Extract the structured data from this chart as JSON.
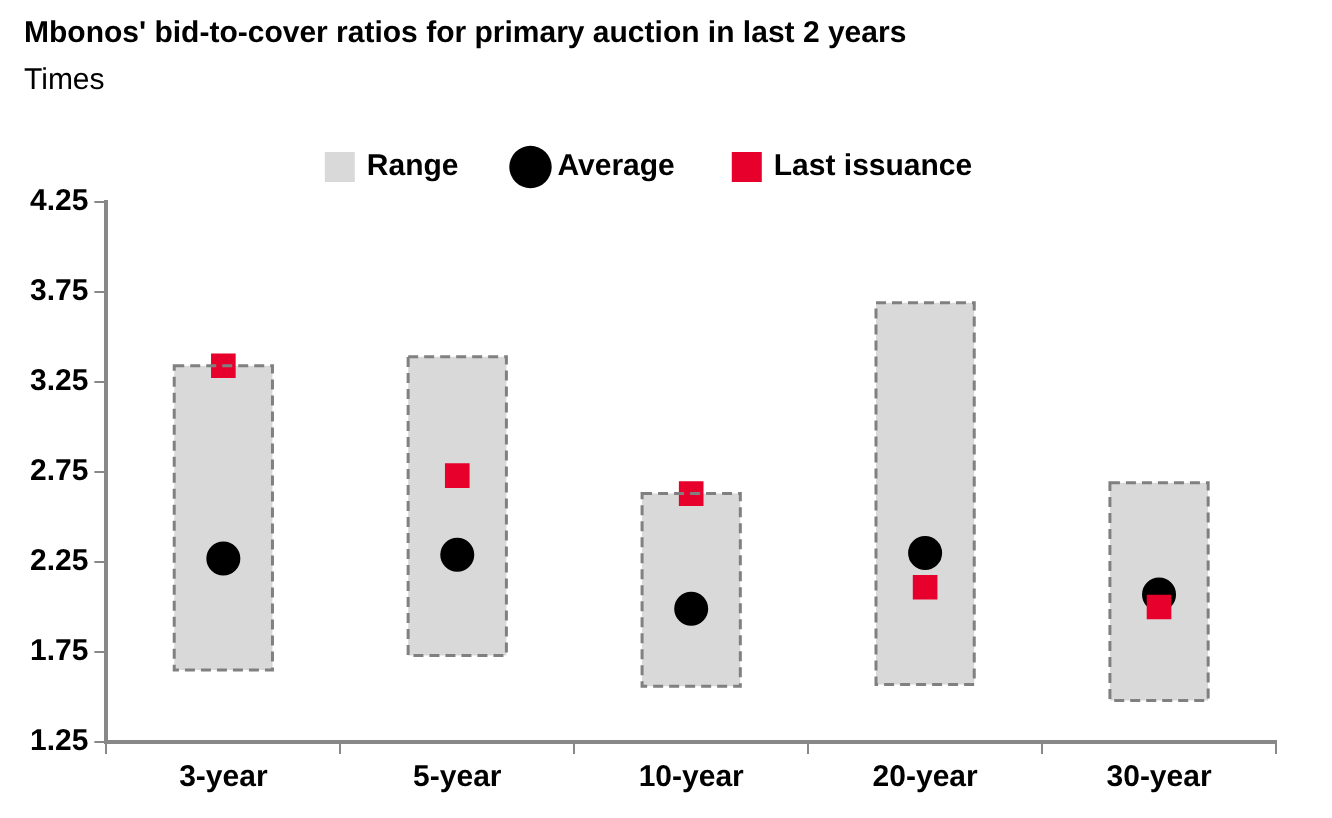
{
  "chart_data": {
    "type": "bar",
    "title": "Mbonos' bid-to-cover ratios for primary auction in last 2 years",
    "ylabel": "Times",
    "categories": [
      "3-year",
      "5-year",
      "10-year",
      "20-year",
      "30-year"
    ],
    "series": [
      {
        "name": "Range",
        "color": "#d9d9d9",
        "line_style": "dashed",
        "base": [
          1.65,
          1.73,
          1.56,
          1.57,
          1.48
        ],
        "values": [
          1.69,
          1.66,
          1.07,
          2.12,
          1.21
        ]
      },
      {
        "type": "scatter",
        "name": "Average",
        "color": "#000000",
        "marker": "circle",
        "values": [
          2.27,
          2.29,
          1.99,
          2.3,
          2.07
        ]
      },
      {
        "type": "scatter",
        "name": "Last issuance",
        "color": "#e8002d",
        "marker": "square",
        "values": [
          3.34,
          2.73,
          2.63,
          2.11,
          2.0
        ]
      }
    ],
    "ylim": [
      1.25,
      4.25
    ],
    "yticks": [
      1.25,
      1.75,
      2.25,
      2.75,
      3.25,
      3.75,
      4.25
    ],
    "legend": "top"
  }
}
